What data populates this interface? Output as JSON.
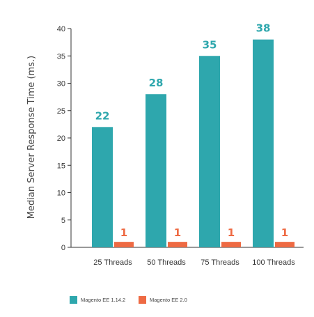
{
  "chart_data": {
    "type": "bar",
    "categories": [
      "25 Threads",
      "50 Threads",
      "75 Threads",
      "100 Threads"
    ],
    "series": [
      {
        "name": "Magento EE 1.14.2",
        "values": [
          22,
          28,
          35,
          38
        ],
        "color": "#2ea7ad"
      },
      {
        "name": "Magento EE 2.0",
        "values": [
          1,
          1,
          1,
          1
        ],
        "color": "#ee6a43"
      }
    ],
    "title": "",
    "xlabel": "",
    "ylabel": "Median Server Response Time (ms.)",
    "ylim": [
      0,
      40
    ],
    "yticks": [
      0,
      5,
      10,
      15,
      20,
      25,
      30,
      35,
      40
    ],
    "grid": false,
    "legend_position": "bottom-left",
    "data_labels": true
  }
}
